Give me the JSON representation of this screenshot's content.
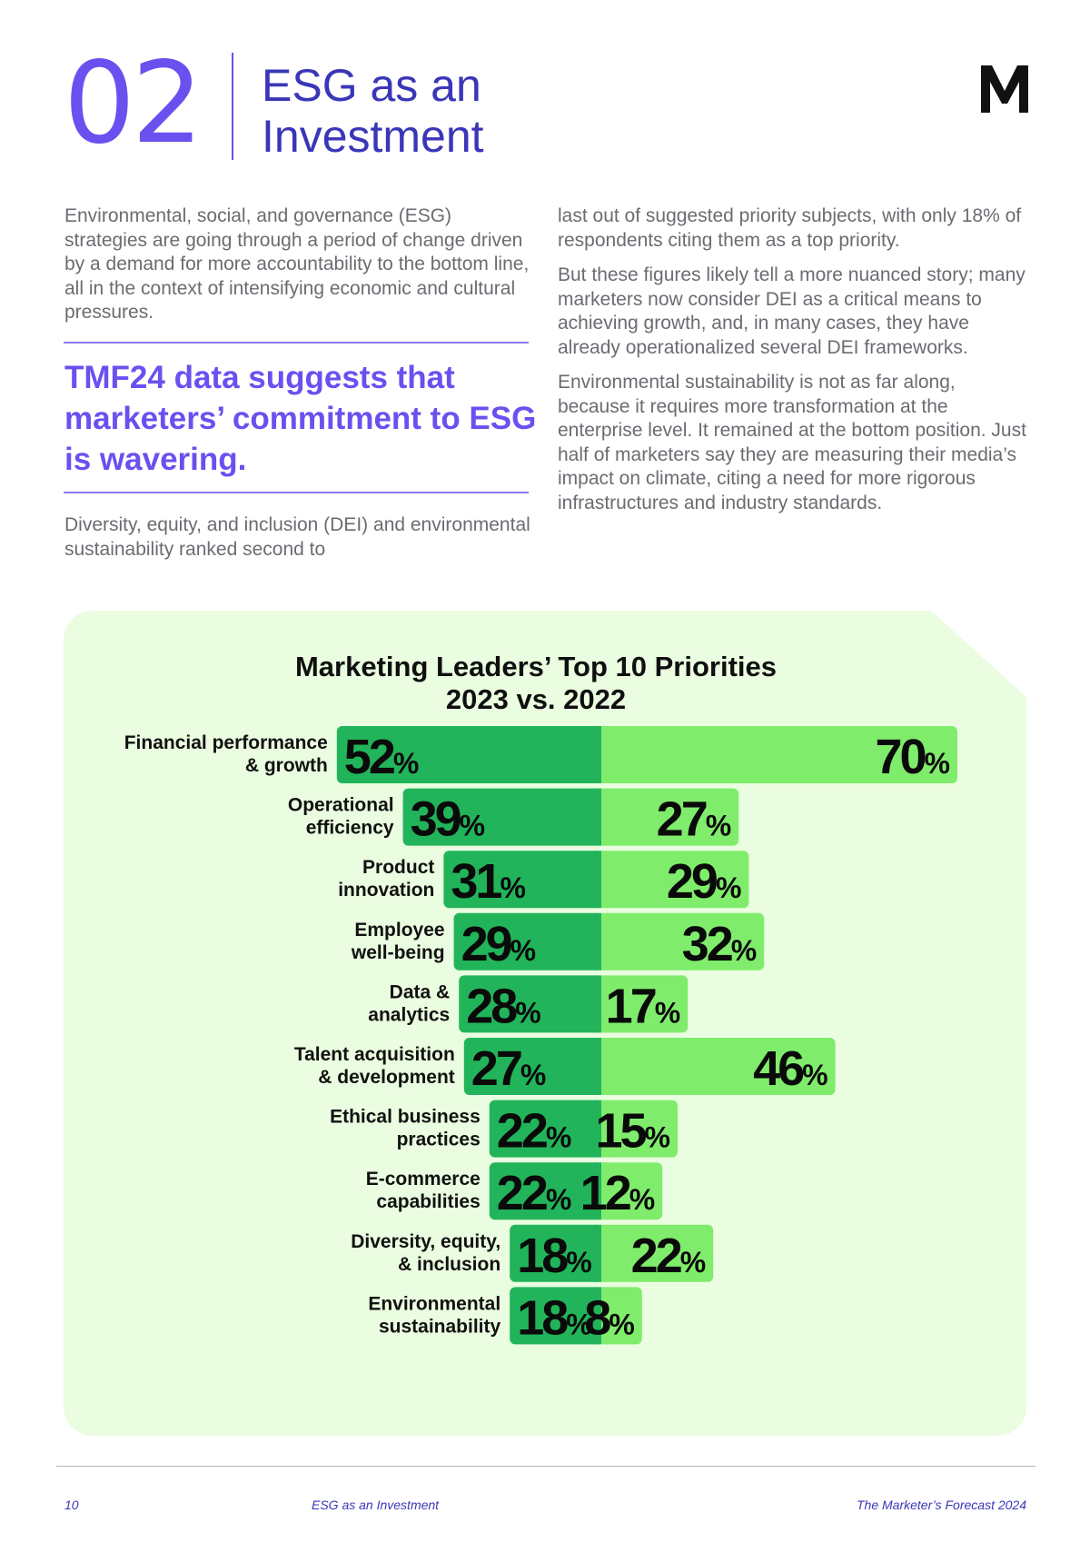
{
  "header": {
    "section_number": "02",
    "title_line1": "ESG as an",
    "title_line2": "Investment",
    "logo_icon": "m-logo-icon"
  },
  "body": {
    "left_intro": "Environmental, social, and governance (ESG) strategies are going through a period of change driven by a demand for more accountability to the bottom line, all in the context of intensifying economic and cultural pressures.",
    "quote": "TMF24 data suggests that marketers’ commitment to ESG is wavering.",
    "left_bottom": "Diversity, equity, and inclusion (DEI) and environmental sustainability ranked second to",
    "right_p1": "last out of suggested priority subjects, with only 18% of respondents citing them as a top priority.",
    "right_p2": "But these figures likely tell a more nuanced story; many marketers now consider DEI as a critical means to achieving growth, and, in many cases, they have already operationalized several DEI frameworks.",
    "right_p3": "Environmental sustainability is not as far along, because it requires more transformation at the enterprise level. It remained at the bottom position. Just half of marketers say they are measuring their media’s impact on climate, citing a need for more rigorous infrastructures and industry standards."
  },
  "chart_data": {
    "type": "bar",
    "title_line1": "Marketing Leaders’ Top 10 Priorities",
    "title_line2": "2023 vs. 2022",
    "categories": [
      [
        "Financial performance",
        "& growth"
      ],
      [
        "Operational",
        "efficiency"
      ],
      [
        "Product",
        "innovation"
      ],
      [
        "Employee",
        "well-being"
      ],
      [
        "Data &",
        "analytics"
      ],
      [
        "Talent acquisition",
        "& development"
      ],
      [
        "Ethical business",
        "practices"
      ],
      [
        "E-commerce",
        "capabilities"
      ],
      [
        "Diversity, equity,",
        "& inclusion"
      ],
      [
        "Environmental",
        "sustainability"
      ]
    ],
    "series": [
      {
        "values": [
          52,
          39,
          31,
          29,
          28,
          27,
          22,
          22,
          18,
          18
        ],
        "color": "#22b45a"
      },
      {
        "values": [
          70,
          27,
          29,
          32,
          17,
          46,
          15,
          12,
          22,
          8
        ],
        "color": "#80ec6c"
      }
    ],
    "unit": "%",
    "background": "#eafde0"
  },
  "footer": {
    "page_number": "10",
    "section": "ESG as an Investment",
    "publication": "The Marketer’s Forecast 2024"
  }
}
